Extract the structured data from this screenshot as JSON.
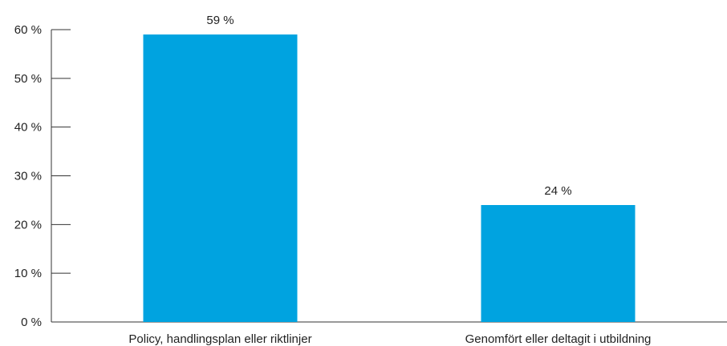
{
  "chart_data": {
    "type": "bar",
    "categories": [
      "Policy, handlingsplan eller riktlinjer",
      "Genomfört eller deltagit i utbildning"
    ],
    "values": [
      59,
      24
    ],
    "data_labels": [
      "59 %",
      "24 %"
    ],
    "y_ticks": [
      0,
      10,
      20,
      30,
      40,
      50,
      60
    ],
    "y_tick_labels": [
      "0 %",
      "10 %",
      "20 %",
      "30 %",
      "40 %",
      "50 %",
      "60 %"
    ],
    "ylim": [
      0,
      60
    ],
    "grid": false,
    "legend": "none",
    "bar_color": "#00A3E0",
    "axis_color": "#333333",
    "text_color": "#222222"
  }
}
